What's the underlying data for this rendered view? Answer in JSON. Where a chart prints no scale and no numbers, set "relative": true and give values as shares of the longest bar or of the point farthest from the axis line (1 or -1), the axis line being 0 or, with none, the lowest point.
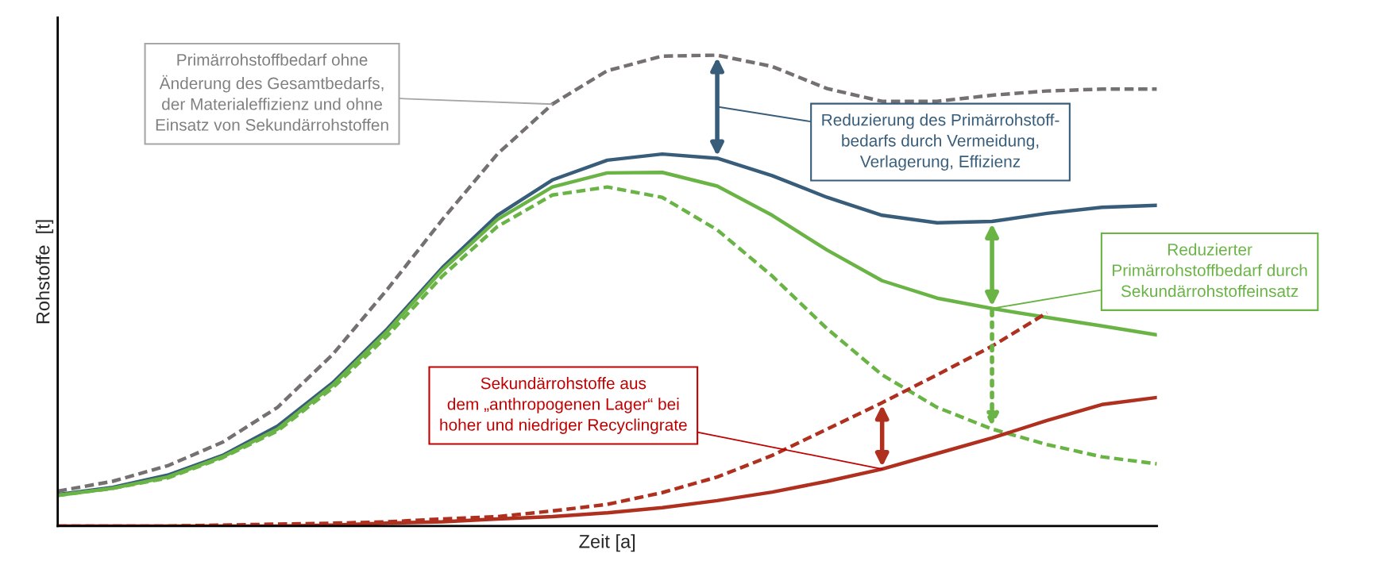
{
  "chart_data": {
    "type": "line",
    "relative": true,
    "xlabel": "Zeit [a]",
    "ylabel": "Rohstoffe  [t]",
    "grid": false,
    "categories": [
      null,
      null,
      null,
      null,
      null,
      null,
      null,
      null,
      null,
      null,
      null,
      null,
      null,
      null,
      null,
      null,
      null,
      null,
      null,
      null,
      null
    ],
    "series": [
      {
        "color": "#767171",
        "line_style": "dashed",
        "values": [
          0.074,
          0.095,
          0.128,
          0.178,
          0.252,
          0.364,
          0.503,
          0.651,
          0.79,
          0.896,
          0.967,
          0.998,
          1,
          0.976,
          0.929,
          0.902,
          0.902,
          0.915,
          0.924,
          0.928,
          0.928
        ]
      },
      {
        "color": "#385d7a",
        "line_style": "solid",
        "values": [
          0.067,
          0.082,
          0.108,
          0.15,
          0.212,
          0.304,
          0.419,
          0.549,
          0.66,
          0.735,
          0.777,
          0.79,
          0.781,
          0.744,
          0.698,
          0.66,
          0.644,
          0.647,
          0.664,
          0.677,
          0.681
        ]
      },
      {
        "color": "#6ab446",
        "line_style": "solid",
        "values": [
          0.065,
          0.08,
          0.104,
          0.147,
          0.206,
          0.299,
          0.414,
          0.544,
          0.651,
          0.72,
          0.75,
          0.751,
          0.722,
          0.66,
          0.586,
          0.521,
          0.484,
          0.462,
          0.443,
          0.425,
          0.406
        ]
      },
      {
        "color": "#6ab446",
        "line_style": "dashed",
        "values": [
          0.065,
          0.08,
          0.102,
          0.145,
          0.202,
          0.293,
          0.404,
          0.531,
          0.636,
          0.703,
          0.72,
          0.698,
          0.629,
          0.531,
          0.419,
          0.321,
          0.252,
          0.206,
          0.173,
          0.147,
          0.132
        ]
      },
      {
        "color": "#b03020",
        "line_style": "dashed",
        "values": [
          0,
          0,
          0,
          0.002,
          0.004,
          0.006,
          0.009,
          0.015,
          0.02,
          0.032,
          0.046,
          0.071,
          0.104,
          0.15,
          0.206,
          0.262,
          0.321,
          0.382,
          0.453,
          null,
          null
        ]
      },
      {
        "color": "#b03020",
        "line_style": "solid",
        "values": [
          0,
          0,
          0,
          0,
          0,
          0.002,
          0.006,
          0.009,
          0.015,
          0.02,
          0.028,
          0.039,
          0.054,
          0.072,
          0.095,
          0.121,
          0.154,
          0.187,
          0.224,
          0.258,
          0.273
        ]
      }
    ],
    "annotations": [
      "Primärrohstoffbedarf ohne\nÄnderung des Gesamtbedarfs,\nder Materialeffizienz und ohne\nEinsatz von Sekundärrohstoffen",
      "Reduzierung des Primärrohstoff-\nbedarfs durch Vermeidung,\nVerlagerung, Effizienz",
      "Reduzierter\nPrimärrohstoffbedarf durch\nSekundärrohstoffeinsatz",
      "Sekundärrohstoffe aus\ndem „anthropogenen Lager“ bei\nhoher und niedriger Recyclingrate"
    ]
  }
}
